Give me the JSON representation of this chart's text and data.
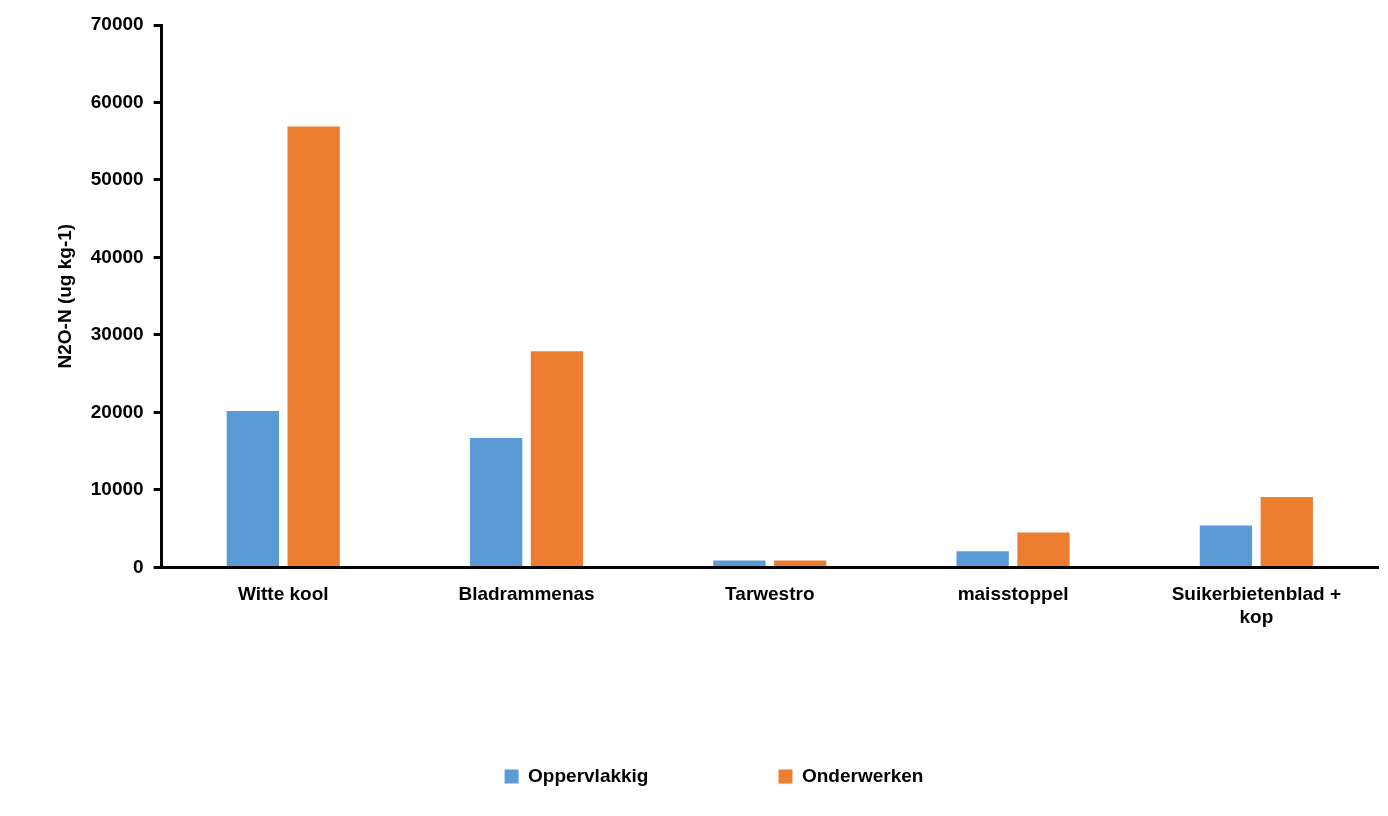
{
  "chart_data": {
    "type": "bar",
    "ylabel": "N2O-N (ug kg-1)",
    "categories": [
      "Witte kool",
      "Bladrammenas",
      "Tarwestro",
      "maisstoppel",
      "Suikerbietenblad + kop"
    ],
    "series": [
      {
        "name": "Oppervlakkig",
        "color": "#5b9bd5",
        "values": [
          20200,
          16700,
          900,
          2100,
          5400
        ]
      },
      {
        "name": "Onderwerken",
        "color": "#ed7d31",
        "values": [
          56900,
          27900,
          900,
          4500,
          9100
        ]
      }
    ],
    "ylim": [
      0,
      70000
    ],
    "yticks": [
      0,
      10000,
      20000,
      30000,
      40000,
      50000,
      60000,
      70000
    ],
    "grid": false,
    "legend": "bottom"
  }
}
